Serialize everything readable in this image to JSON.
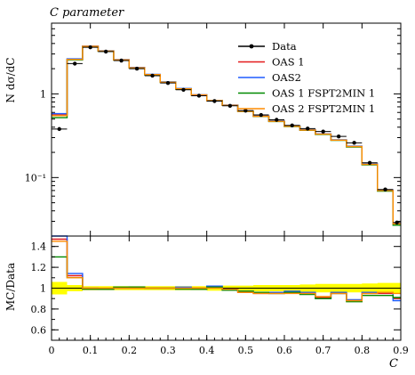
{
  "chart_data": [
    {
      "type": "line",
      "panel": "main",
      "title": "C parameter",
      "ylabel": "N dσ/dC",
      "y_scale": "log",
      "ylim": [
        0.02,
        7
      ],
      "xlim": [
        0,
        0.9
      ],
      "y_tick_labels": [
        {
          "value": 1,
          "text": "1"
        },
        {
          "value": 0.1,
          "text": "10⁻¹"
        }
      ],
      "legend_position": "top-right",
      "bin_edges": [
        0,
        0.04,
        0.08,
        0.12,
        0.16,
        0.2,
        0.24,
        0.28,
        0.32,
        0.36,
        0.4,
        0.44,
        0.48,
        0.52,
        0.56,
        0.6,
        0.64,
        0.68,
        0.72,
        0.76,
        0.8,
        0.84,
        0.88,
        0.92
      ],
      "series": [
        {
          "name": "Data",
          "color": "#000000",
          "style": "points",
          "values": [
            0.38,
            2.3,
            3.6,
            3.2,
            2.5,
            2.0,
            1.65,
            1.35,
            1.12,
            0.95,
            0.82,
            0.72,
            0.63,
            0.56,
            0.49,
            0.42,
            0.385,
            0.355,
            0.31,
            0.26,
            0.15,
            0.072,
            0.029
          ]
        },
        {
          "name": "OAS 1",
          "color": "#e31a1c",
          "style": "step",
          "values": [
            0.56,
            2.6,
            3.7,
            3.25,
            2.55,
            2.05,
            1.7,
            1.38,
            1.15,
            0.97,
            0.83,
            0.73,
            0.62,
            0.54,
            0.47,
            0.41,
            0.37,
            0.33,
            0.28,
            0.235,
            0.145,
            0.07,
            0.028
          ]
        },
        {
          "name": "OAS2",
          "color": "#1f5cff",
          "style": "step",
          "values": [
            0.58,
            2.62,
            3.72,
            3.27,
            2.57,
            2.07,
            1.71,
            1.39,
            1.16,
            0.975,
            0.835,
            0.735,
            0.625,
            0.545,
            0.475,
            0.415,
            0.373,
            0.333,
            0.282,
            0.237,
            0.146,
            0.071,
            0.028
          ]
        },
        {
          "name": "OAS 1 FSPT2MIN 1",
          "color": "#008a00",
          "style": "step",
          "values": [
            0.52,
            2.55,
            3.68,
            3.23,
            2.54,
            2.04,
            1.69,
            1.37,
            1.14,
            0.965,
            0.828,
            0.728,
            0.618,
            0.538,
            0.468,
            0.408,
            0.368,
            0.328,
            0.278,
            0.232,
            0.142,
            0.069,
            0.027
          ]
        },
        {
          "name": "OAS 2 FSPT2MIN 1",
          "color": "#ff8c00",
          "style": "step",
          "values": [
            0.55,
            2.58,
            3.7,
            3.25,
            2.55,
            2.05,
            1.7,
            1.38,
            1.15,
            0.97,
            0.83,
            0.73,
            0.62,
            0.54,
            0.47,
            0.41,
            0.37,
            0.33,
            0.28,
            0.235,
            0.144,
            0.07,
            0.028
          ]
        }
      ]
    },
    {
      "type": "line",
      "panel": "ratio",
      "ylabel": "MC/Data",
      "xlabel": "C",
      "ylim": [
        0.5,
        1.5
      ],
      "xlim": [
        0,
        0.9
      ],
      "y_ticks": [
        0.6,
        0.8,
        1,
        1.2,
        1.4
      ],
      "y_tick_labels": [
        "0.6",
        "0.8",
        "1",
        "1.2",
        "1.4"
      ],
      "x_ticks": [
        0,
        0.1,
        0.2,
        0.3,
        0.4,
        0.5,
        0.6,
        0.7,
        0.8,
        0.9
      ],
      "x_tick_labels": [
        "0",
        "0.1",
        "0.2",
        "0.3",
        "0.4",
        "0.5",
        "0.6",
        "0.7",
        "0.8",
        "0.9"
      ],
      "band": {
        "color": "#ffff00",
        "lower": [
          0.94,
          0.97,
          0.98,
          0.98,
          0.98,
          0.98,
          0.98,
          0.98,
          0.98,
          0.98,
          0.975,
          0.975,
          0.975,
          0.97,
          0.97,
          0.97,
          0.965,
          0.96,
          0.96,
          0.96,
          0.955,
          0.95,
          0.95
        ],
        "upper": [
          1.06,
          1.03,
          1.02,
          1.02,
          1.02,
          1.02,
          1.02,
          1.02,
          1.02,
          1.02,
          1.025,
          1.025,
          1.025,
          1.03,
          1.03,
          1.03,
          1.035,
          1.04,
          1.04,
          1.04,
          1.045,
          1.05,
          1.05
        ]
      },
      "series": [
        {
          "name": "OAS 1",
          "color": "#e31a1c",
          "values": [
            1.47,
            1.12,
            0.99,
            0.99,
            1.0,
            1.0,
            1.0,
            1.0,
            1.0,
            1.0,
            1.01,
            0.99,
            0.96,
            0.95,
            0.95,
            0.96,
            0.95,
            0.91,
            0.95,
            0.88,
            0.95,
            0.95,
            0.9
          ]
        },
        {
          "name": "OAS2",
          "color": "#1f5cff",
          "values": [
            1.5,
            1.14,
            1.0,
            0.99,
            1.0,
            1.01,
            1.0,
            1.0,
            1.01,
            0.99,
            1.02,
            0.99,
            0.97,
            0.96,
            0.96,
            0.97,
            0.96,
            0.9,
            0.96,
            0.89,
            0.96,
            0.96,
            0.88
          ]
        },
        {
          "name": "OAS 1 FSPT2MIN 1",
          "color": "#008a00",
          "values": [
            1.3,
            1.1,
            0.99,
            0.99,
            1.01,
            1.01,
            1.0,
            1.0,
            0.99,
            0.99,
            1.01,
            0.98,
            0.97,
            0.96,
            0.95,
            0.96,
            0.94,
            0.9,
            0.95,
            0.87,
            0.93,
            0.93,
            0.91
          ]
        },
        {
          "name": "OAS 2 FSPT2MIN 1",
          "color": "#ff8c00",
          "values": [
            1.45,
            1.1,
            1.0,
            1.0,
            1.0,
            1.0,
            1.0,
            1.0,
            1.0,
            1.0,
            1.0,
            0.99,
            0.96,
            0.95,
            0.95,
            0.95,
            0.95,
            0.92,
            0.95,
            0.88,
            0.95,
            0.96,
            0.95
          ]
        }
      ]
    }
  ]
}
